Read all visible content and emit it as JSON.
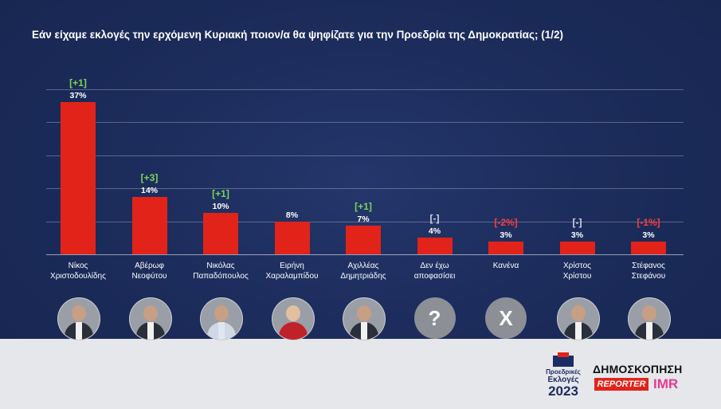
{
  "title": "Εάν είχαμε εκλογές την ερχόμενη Κυριακή ποιον/α θα ψηφίζατε για την Προεδρία της Δημοκρατίας; (1/2)",
  "colors": {
    "bar": "#e2231a",
    "background": "#1c2c5c",
    "change_positive": "#7bd657",
    "change_neutral": "#d0d6e4",
    "change_negative": "#ff3a3a"
  },
  "chart_data": {
    "type": "bar",
    "title": "Εάν είχαμε εκλογές την ερχόμενη Κυριακή ποιον/α θα ψηφίζατε για την Προεδρία της Δημοκρατίας; (1/2)",
    "categories": [
      [
        "Νίκος",
        "Χριστοδουλίδης"
      ],
      [
        "Αβέρωφ",
        "Νεοφύτου"
      ],
      [
        "Νικόλας",
        "Παπαδόπουλος"
      ],
      [
        "Ειρήνη",
        "Χαραλαμπίδου"
      ],
      [
        "Αχιλλέας",
        "Δημητριάδης"
      ],
      [
        "Δεν έχω",
        "αποφασίσει"
      ],
      [
        "Κανένα",
        ""
      ],
      [
        "Χρίστος",
        "Χρίστου"
      ],
      [
        "Στέφανος",
        "Στεφάνου"
      ]
    ],
    "values": [
      37,
      14,
      10,
      8,
      7,
      4,
      3,
      3,
      3
    ],
    "value_labels": [
      "37%",
      "14%",
      "10%",
      "8%",
      "7%",
      "4%",
      "3%",
      "3%",
      "3%"
    ],
    "change_labels": [
      "[+1]",
      "[+3]",
      "[+1]",
      "",
      "[+1]",
      "[-]",
      "[-2%]",
      "[-]",
      "[-1%]"
    ],
    "change_types": [
      "pos",
      "pos",
      "pos",
      "",
      "pos",
      "neu",
      "neg",
      "neu",
      "neg"
    ],
    "avatars": [
      "person-photo",
      "person-photo",
      "person-photo",
      "person-photo",
      "person-photo",
      "question-mark",
      "x-mark",
      "person-photo",
      "person-photo"
    ],
    "avatar_glyphs": [
      "",
      "",
      "",
      "",
      "",
      "?",
      "X",
      "",
      ""
    ],
    "ylim": [
      0,
      40
    ],
    "grid": true
  },
  "footer": {
    "logo": {
      "line1": "Προεδρικές",
      "line2": "Εκλογές",
      "line3": "2023"
    },
    "poll_label": "ΔΗΜΟΣΚΟΠΗΣΗ",
    "brand1": "REPORTER",
    "brand2": "IMR"
  }
}
